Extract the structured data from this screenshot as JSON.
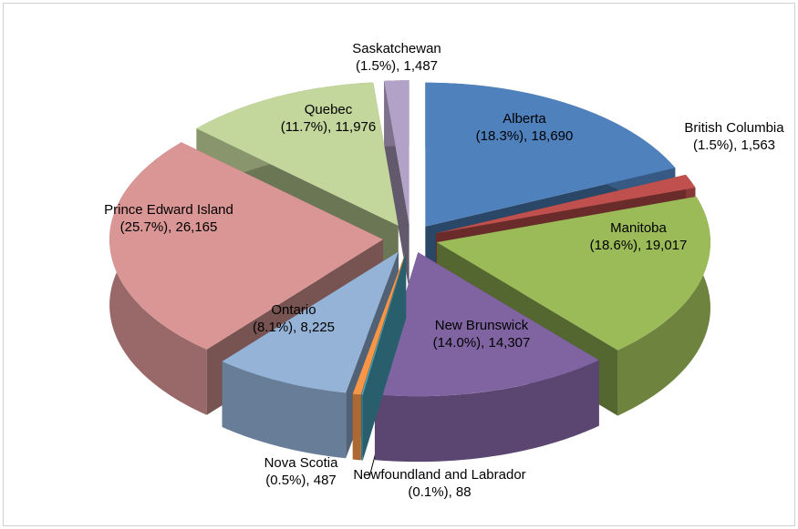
{
  "chart_data": {
    "type": "pie",
    "categories": [
      "Alberta",
      "British Columbia",
      "Manitoba",
      "New Brunswick",
      "Newfoundland and Labrador",
      "Nova Scotia",
      "Ontario",
      "Prince Edward Island",
      "Quebec",
      "Saskatchewan"
    ],
    "values": [
      18690,
      1563,
      19017,
      14307,
      88,
      487,
      8225,
      26165,
      11976,
      1487
    ],
    "value_labels": [
      "(18.3%), 18,690",
      "(1.5%), 1,563",
      "(18.6%), 19,017",
      "(14.0%), 14,307",
      "(0.1%), 88",
      "(0.5%), 487",
      "(8.1%), 8,225",
      "(25.7%), 26,165",
      "(11.7%), 11,976",
      "(1.5%), 1,487"
    ],
    "colors": [
      "#4f81bd",
      "#c0504d",
      "#9bbb59",
      "#8064a2",
      "#4bacc6",
      "#f79646",
      "#95b3d7",
      "#d99694",
      "#c3d69b",
      "#b3a2c7"
    ]
  }
}
